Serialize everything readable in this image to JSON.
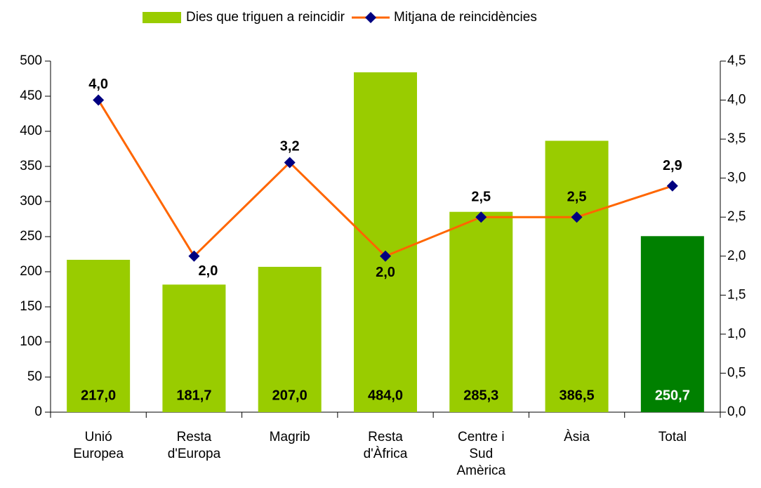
{
  "chart_data": {
    "type": "bar",
    "categories": [
      [
        "Unió",
        "Europea"
      ],
      [
        "Resta",
        "d'Europa"
      ],
      [
        "Magrib"
      ],
      [
        "Resta",
        "d'Àfrica"
      ],
      [
        "Centre i",
        "Sud",
        "Amèrica"
      ],
      [
        "Àsia"
      ],
      [
        "Total"
      ]
    ],
    "series": [
      {
        "name": "Dies que triguen a reincidir",
        "type": "bar",
        "color": "#99cc00",
        "colors": [
          "#99cc00",
          "#99cc00",
          "#99cc00",
          "#99cc00",
          "#99cc00",
          "#99cc00",
          "#008000"
        ],
        "label_colors": [
          "#000000",
          "#000000",
          "#000000",
          "#000000",
          "#000000",
          "#000000",
          "#ffffff"
        ],
        "values": [
          217.0,
          181.7,
          207.0,
          484.0,
          285.3,
          386.5,
          250.7
        ],
        "value_labels": [
          "217,0",
          "181,7",
          "207,0",
          "484,0",
          "285,3",
          "386,5",
          "250,7"
        ]
      },
      {
        "name": "Mitjana de reincidències",
        "type": "line",
        "axis": "y2",
        "color": "#ff6600",
        "marker_color": "#000080",
        "values": [
          4.0,
          2.0,
          3.2,
          2.0,
          2.5,
          2.5,
          2.9
        ],
        "value_labels": [
          "4,0",
          "2,0",
          "3,2",
          "2,0",
          "2,5",
          "2,5",
          "2,9"
        ]
      }
    ],
    "ylim": [
      0,
      500
    ],
    "yticks": [
      0,
      50,
      100,
      150,
      200,
      250,
      300,
      350,
      400,
      450,
      500
    ],
    "y2lim": [
      0,
      4.5
    ],
    "y2ticks": [
      {
        "value": 0,
        "label": "0,0"
      },
      {
        "value": 0.5,
        "label": "0,5"
      },
      {
        "value": 1,
        "label": "1,0"
      },
      {
        "value": 1.5,
        "label": "1,5"
      },
      {
        "value": 2,
        "label": "2,0"
      },
      {
        "value": 2.5,
        "label": "2,5"
      },
      {
        "value": 3,
        "label": "3,0"
      },
      {
        "value": 3.5,
        "label": "3,5"
      },
      {
        "value": 4,
        "label": "4,0"
      },
      {
        "value": 4.5,
        "label": "4,5"
      }
    ],
    "legend": "top",
    "grid": false
  }
}
